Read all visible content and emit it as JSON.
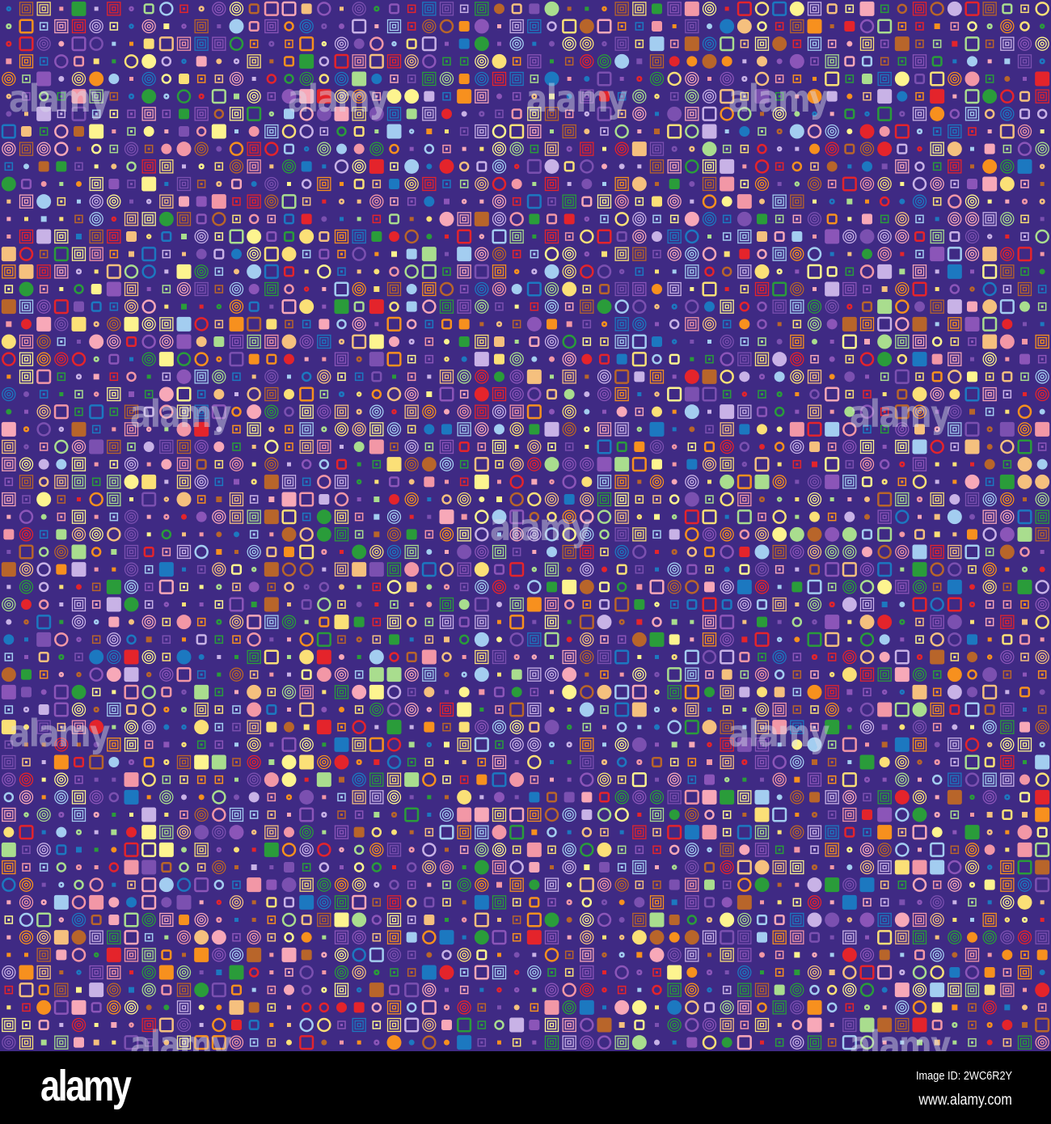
{
  "background_color": "#3f2a84",
  "shape_colors": [
    "#f7901e",
    "#fdf48f",
    "#a3cdf0",
    "#f5c07e",
    "#8b55b8",
    "#f297a6",
    "#a9dd8e",
    "#e4242b",
    "#2a9c3a",
    "#1c78c0",
    "#b8652a",
    "#c8b2e6",
    "#7b50b0",
    "#fbe077",
    "#f7a8b8"
  ],
  "watermark": {
    "text": "alamy"
  },
  "footer": {
    "logo": "alamy",
    "image_id": "Image ID: 2WC6R2Y",
    "website": "www.alamy.com"
  }
}
